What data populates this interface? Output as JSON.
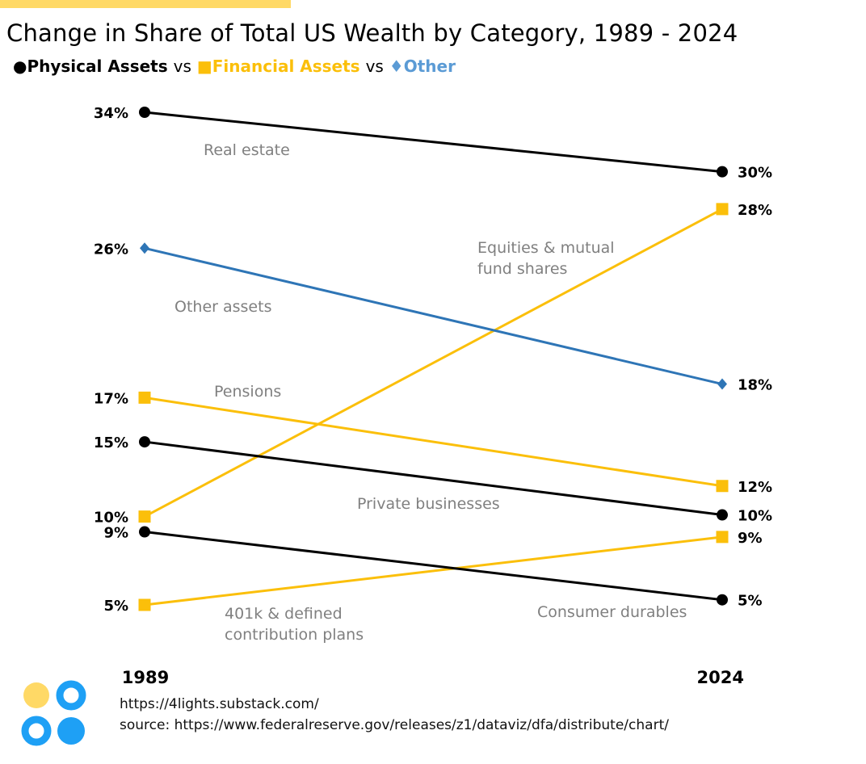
{
  "title": "Change in Share of Total US Wealth by Category, 1989 - 2024",
  "legend": [
    {
      "symbol": "●",
      "label": "Physical Assets",
      "color": "#000000"
    },
    {
      "separator": "vs"
    },
    {
      "symbol": "■",
      "label": "Financial Assets",
      "color": "#fbbf0a"
    },
    {
      "separator": "vs"
    },
    {
      "symbol": "♦",
      "label": "Other",
      "color": "#5b9bd5"
    }
  ],
  "chart_data": {
    "type": "line",
    "subtype": "slope",
    "x": [
      "1989",
      "2024"
    ],
    "ylim": [
      5,
      34
    ],
    "series": [
      {
        "name": "Real estate",
        "group": "Physical Assets",
        "marker": "circle",
        "color": "#000000",
        "values": [
          34,
          30.5
        ],
        "labels": [
          "34%",
          "30%"
        ]
      },
      {
        "name": "Equities & mutual fund shares",
        "group": "Financial Assets",
        "marker": "square",
        "color": "#fbbf0a",
        "values": [
          10.2,
          28.3
        ],
        "labels": [
          "10%",
          "28%"
        ]
      },
      {
        "name": "Other assets",
        "group": "Other",
        "marker": "diamond",
        "color": "#2e75b6",
        "values": [
          26,
          18
        ],
        "labels": [
          "26%",
          "18%"
        ]
      },
      {
        "name": "Pensions",
        "group": "Financial Assets",
        "marker": "square",
        "color": "#fbbf0a",
        "values": [
          17.2,
          12
        ],
        "labels": [
          "17%",
          "12%"
        ]
      },
      {
        "name": "Private businesses",
        "group": "Physical Assets",
        "marker": "circle",
        "color": "#000000",
        "values": [
          14.6,
          10.3
        ],
        "labels": [
          "15%",
          "10%"
        ]
      },
      {
        "name": "401k & defined contribution plans",
        "group": "Financial Assets",
        "marker": "square",
        "color": "#fbbf0a",
        "values": [
          5,
          9
        ],
        "labels": [
          "5%",
          "9%"
        ]
      },
      {
        "name": "Consumer durables",
        "group": "Physical Assets",
        "marker": "circle",
        "color": "#000000",
        "values": [
          9.3,
          5.3
        ],
        "labels": [
          "9%",
          "5%"
        ]
      }
    ],
    "annotations": [
      {
        "series": 0,
        "lines": [
          "Real estate"
        ]
      },
      {
        "series": 1,
        "lines": [
          "Equities & mutual",
          "fund shares"
        ]
      },
      {
        "series": 2,
        "lines": [
          "Other assets"
        ]
      },
      {
        "series": 3,
        "lines": [
          "Pensions"
        ]
      },
      {
        "series": 4,
        "lines": [
          "Private businesses"
        ]
      },
      {
        "series": 5,
        "lines": [
          "401k & defined",
          "contribution plans"
        ]
      },
      {
        "series": 6,
        "lines": [
          "Consumer durables"
        ]
      }
    ]
  },
  "footer": {
    "url": "https://4lights.substack.com/",
    "source": "source: https://www.federalreserve.gov/releases/z1/dataviz/dfa/distribute/chart/"
  }
}
